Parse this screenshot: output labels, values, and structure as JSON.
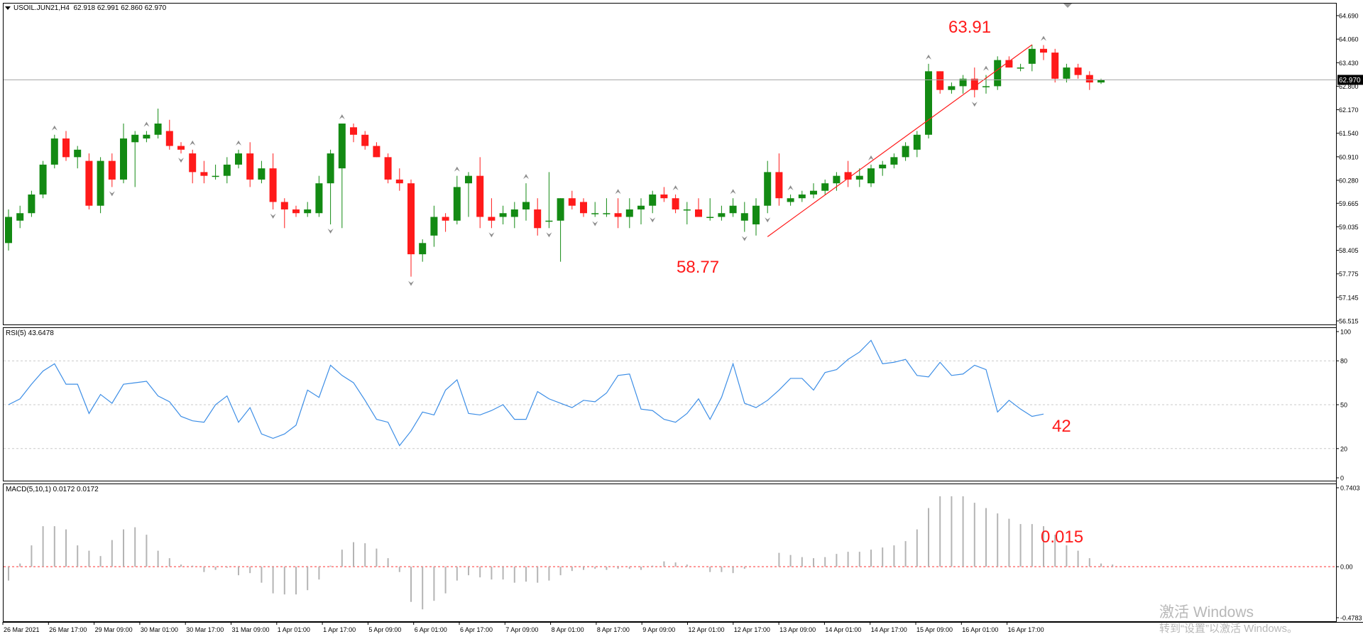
{
  "chart_window": {
    "symbol_header": "USOIL.JUN21,H4",
    "ohlc_values": "62.918 62.991 62.860 62.970",
    "current_price": "62.970",
    "menu_arrow": "triangle-down-icon",
    "colors": {
      "bull": "#138a13",
      "bear": "#ff1a1a",
      "rsi_line": "#3d8ee6",
      "annotation": "#ff1a1a",
      "grid": "#c8c8c8",
      "macd_bar": "#b4b4b4",
      "macd_zero": "#ff3333",
      "pane_border": "#000000"
    }
  },
  "annotations": {
    "high": "63.91",
    "low": "58.77",
    "rsi_value": "42",
    "macd_value": "0.015"
  },
  "indicators": {
    "rsi_label": "RSI(5) 43.6478",
    "macd_label": "MACD(5,10,1) 0.0172 0.0172"
  },
  "watermark": {
    "line1": "激活 Windows",
    "line2": "转到“设置”以激活 Windows。"
  },
  "chart_data": [
    {
      "type": "candlestick",
      "title": "USOIL.JUN21,H4",
      "y_ticks": [
        "64.690",
        "64.060",
        "63.430",
        "62.800",
        "62.170",
        "61.540",
        "60.910",
        "60.280",
        "59.665",
        "59.035",
        "58.405",
        "57.775",
        "57.145",
        "56.515"
      ],
      "ylim": [
        56.515,
        64.69
      ],
      "x_labels": [
        "26 Mar 2021",
        "26 Mar 17:00",
        "29 Mar 09:00",
        "30 Mar 01:00",
        "30 Mar 17:00",
        "31 Mar 09:00",
        "1 Apr 01:00",
        "1 Apr 17:00",
        "5 Apr 09:00",
        "6 Apr 01:00",
        "6 Apr 17:00",
        "7 Apr 09:00",
        "8 Apr 01:00",
        "8 Apr 17:00",
        "9 Apr 09:00",
        "12 Apr 01:00",
        "12 Apr 17:00",
        "13 Apr 09:00",
        "14 Apr 01:00",
        "14 Apr 17:00",
        "15 Apr 09:00",
        "16 Apr 01:00",
        "16 Apr 17:00"
      ],
      "candles": [
        {
          "o": 58.6,
          "h": 59.5,
          "l": 58.4,
          "c": 59.3
        },
        {
          "o": 59.2,
          "h": 59.6,
          "l": 59.0,
          "c": 59.4
        },
        {
          "o": 59.4,
          "h": 60.0,
          "l": 59.3,
          "c": 59.9
        },
        {
          "o": 59.9,
          "h": 60.8,
          "l": 59.8,
          "c": 60.7
        },
        {
          "o": 60.7,
          "h": 61.5,
          "l": 60.6,
          "c": 61.4
        },
        {
          "o": 61.4,
          "h": 61.6,
          "l": 60.8,
          "c": 60.9
        },
        {
          "o": 60.9,
          "h": 61.2,
          "l": 60.6,
          "c": 61.1
        },
        {
          "o": 60.8,
          "h": 61.0,
          "l": 59.5,
          "c": 59.6
        },
        {
          "o": 59.6,
          "h": 60.9,
          "l": 59.4,
          "c": 60.8
        },
        {
          "o": 60.8,
          "h": 61.0,
          "l": 60.1,
          "c": 60.3
        },
        {
          "o": 60.3,
          "h": 61.8,
          "l": 60.2,
          "c": 61.4
        },
        {
          "o": 61.3,
          "h": 61.6,
          "l": 60.1,
          "c": 61.5
        },
        {
          "o": 61.4,
          "h": 61.6,
          "l": 61.3,
          "c": 61.5
        },
        {
          "o": 61.5,
          "h": 62.2,
          "l": 61.4,
          "c": 61.8
        },
        {
          "o": 61.6,
          "h": 61.9,
          "l": 61.1,
          "c": 61.2
        },
        {
          "o": 61.2,
          "h": 61.3,
          "l": 61.0,
          "c": 61.1
        },
        {
          "o": 61.0,
          "h": 61.1,
          "l": 60.2,
          "c": 60.5
        },
        {
          "o": 60.5,
          "h": 60.8,
          "l": 60.2,
          "c": 60.4
        },
        {
          "o": 60.4,
          "h": 60.7,
          "l": 60.3,
          "c": 60.4
        },
        {
          "o": 60.4,
          "h": 60.9,
          "l": 60.2,
          "c": 60.7
        },
        {
          "o": 60.7,
          "h": 61.1,
          "l": 60.6,
          "c": 61.0
        },
        {
          "o": 61.0,
          "h": 61.3,
          "l": 60.1,
          "c": 60.3
        },
        {
          "o": 60.3,
          "h": 60.8,
          "l": 60.2,
          "c": 60.6
        },
        {
          "o": 60.6,
          "h": 61.0,
          "l": 59.5,
          "c": 59.7
        },
        {
          "o": 59.7,
          "h": 59.8,
          "l": 59.0,
          "c": 59.5
        },
        {
          "o": 59.5,
          "h": 59.6,
          "l": 59.3,
          "c": 59.4
        },
        {
          "o": 59.4,
          "h": 59.7,
          "l": 59.3,
          "c": 59.5
        },
        {
          "o": 59.4,
          "h": 60.4,
          "l": 59.3,
          "c": 60.2
        },
        {
          "o": 60.2,
          "h": 61.1,
          "l": 59.1,
          "c": 61.0
        },
        {
          "o": 60.6,
          "h": 61.8,
          "l": 59.0,
          "c": 61.8
        },
        {
          "o": 61.7,
          "h": 61.8,
          "l": 61.3,
          "c": 61.5
        },
        {
          "o": 61.5,
          "h": 61.6,
          "l": 61.1,
          "c": 61.2
        },
        {
          "o": 61.2,
          "h": 61.3,
          "l": 60.9,
          "c": 60.9
        },
        {
          "o": 60.9,
          "h": 61.0,
          "l": 60.2,
          "c": 60.3
        },
        {
          "o": 60.3,
          "h": 60.6,
          "l": 60.0,
          "c": 60.2
        },
        {
          "o": 60.2,
          "h": 60.3,
          "l": 57.7,
          "c": 58.3
        },
        {
          "o": 58.3,
          "h": 58.7,
          "l": 58.1,
          "c": 58.6
        },
        {
          "o": 58.8,
          "h": 59.6,
          "l": 58.5,
          "c": 59.3
        },
        {
          "o": 59.3,
          "h": 59.4,
          "l": 58.9,
          "c": 59.2
        },
        {
          "o": 59.2,
          "h": 60.4,
          "l": 59.1,
          "c": 60.1
        },
        {
          "o": 60.2,
          "h": 60.5,
          "l": 59.3,
          "c": 60.4
        },
        {
          "o": 60.4,
          "h": 60.9,
          "l": 59.0,
          "c": 59.3
        },
        {
          "o": 59.3,
          "h": 59.8,
          "l": 59.0,
          "c": 59.2
        },
        {
          "o": 59.3,
          "h": 59.6,
          "l": 59.1,
          "c": 59.4
        },
        {
          "o": 59.3,
          "h": 59.7,
          "l": 59.0,
          "c": 59.5
        },
        {
          "o": 59.5,
          "h": 60.2,
          "l": 59.2,
          "c": 59.7
        },
        {
          "o": 59.5,
          "h": 59.8,
          "l": 58.8,
          "c": 59.0
        },
        {
          "o": 59.2,
          "h": 60.5,
          "l": 59.0,
          "c": 59.2
        },
        {
          "o": 59.2,
          "h": 59.8,
          "l": 58.1,
          "c": 59.8
        },
        {
          "o": 59.8,
          "h": 60.0,
          "l": 59.5,
          "c": 59.6
        },
        {
          "o": 59.7,
          "h": 59.8,
          "l": 59.3,
          "c": 59.4
        },
        {
          "o": 59.4,
          "h": 59.7,
          "l": 59.3,
          "c": 59.4
        },
        {
          "o": 59.4,
          "h": 59.8,
          "l": 59.3,
          "c": 59.4
        },
        {
          "o": 59.4,
          "h": 59.8,
          "l": 59.0,
          "c": 59.3
        },
        {
          "o": 59.3,
          "h": 59.8,
          "l": 59.0,
          "c": 59.5
        },
        {
          "o": 59.5,
          "h": 59.8,
          "l": 59.1,
          "c": 59.6
        },
        {
          "o": 59.6,
          "h": 60.0,
          "l": 59.4,
          "c": 59.9
        },
        {
          "o": 59.9,
          "h": 60.1,
          "l": 59.7,
          "c": 59.8
        },
        {
          "o": 59.8,
          "h": 59.9,
          "l": 59.4,
          "c": 59.5
        },
        {
          "o": 59.5,
          "h": 59.7,
          "l": 59.1,
          "c": 59.5
        },
        {
          "o": 59.5,
          "h": 59.8,
          "l": 59.3,
          "c": 59.3
        },
        {
          "o": 59.3,
          "h": 59.8,
          "l": 59.2,
          "c": 59.3
        },
        {
          "o": 59.3,
          "h": 59.6,
          "l": 59.2,
          "c": 59.4
        },
        {
          "o": 59.4,
          "h": 59.8,
          "l": 59.3,
          "c": 59.6
        },
        {
          "o": 59.2,
          "h": 59.7,
          "l": 58.9,
          "c": 59.4
        },
        {
          "o": 59.1,
          "h": 59.8,
          "l": 58.8,
          "c": 59.6
        },
        {
          "o": 59.6,
          "h": 60.8,
          "l": 59.4,
          "c": 60.5
        },
        {
          "o": 60.5,
          "h": 61.0,
          "l": 59.6,
          "c": 59.8
        },
        {
          "o": 59.7,
          "h": 59.9,
          "l": 59.6,
          "c": 59.8
        },
        {
          "o": 59.8,
          "h": 60.0,
          "l": 59.7,
          "c": 59.9
        },
        {
          "o": 59.9,
          "h": 60.2,
          "l": 59.8,
          "c": 60.0
        },
        {
          "o": 60.0,
          "h": 60.3,
          "l": 59.9,
          "c": 60.2
        },
        {
          "o": 60.2,
          "h": 60.5,
          "l": 60.0,
          "c": 60.4
        },
        {
          "o": 60.5,
          "h": 60.8,
          "l": 60.1,
          "c": 60.3
        },
        {
          "o": 60.3,
          "h": 60.6,
          "l": 60.1,
          "c": 60.4
        },
        {
          "o": 60.2,
          "h": 60.7,
          "l": 60.1,
          "c": 60.6
        },
        {
          "o": 60.6,
          "h": 60.8,
          "l": 60.4,
          "c": 60.7
        },
        {
          "o": 60.7,
          "h": 61.0,
          "l": 60.6,
          "c": 60.9
        },
        {
          "o": 60.9,
          "h": 61.3,
          "l": 60.8,
          "c": 61.2
        },
        {
          "o": 61.1,
          "h": 61.6,
          "l": 60.9,
          "c": 61.5
        },
        {
          "o": 61.5,
          "h": 63.4,
          "l": 61.4,
          "c": 63.2
        },
        {
          "o": 63.2,
          "h": 63.2,
          "l": 62.6,
          "c": 62.7
        },
        {
          "o": 62.7,
          "h": 62.9,
          "l": 62.6,
          "c": 62.8
        },
        {
          "o": 62.8,
          "h": 63.1,
          "l": 62.6,
          "c": 63.0
        },
        {
          "o": 63.0,
          "h": 63.3,
          "l": 62.5,
          "c": 62.7
        },
        {
          "o": 62.8,
          "h": 63.1,
          "l": 62.6,
          "c": 62.8
        },
        {
          "o": 62.8,
          "h": 63.6,
          "l": 62.7,
          "c": 63.5
        },
        {
          "o": 63.5,
          "h": 63.6,
          "l": 63.3,
          "c": 63.3
        },
        {
          "o": 63.3,
          "h": 63.4,
          "l": 63.2,
          "c": 63.3
        },
        {
          "o": 63.4,
          "h": 63.91,
          "l": 63.2,
          "c": 63.8
        },
        {
          "o": 63.8,
          "h": 63.9,
          "l": 63.5,
          "c": 63.7
        },
        {
          "o": 63.7,
          "h": 63.8,
          "l": 62.9,
          "c": 63.0
        },
        {
          "o": 63.0,
          "h": 63.4,
          "l": 62.9,
          "c": 63.3
        },
        {
          "o": 63.3,
          "h": 63.4,
          "l": 63.0,
          "c": 63.1
        },
        {
          "o": 63.1,
          "h": 63.2,
          "l": 62.7,
          "c": 62.9
        },
        {
          "o": 62.9,
          "h": 63.0,
          "l": 62.86,
          "c": 62.97
        }
      ],
      "fractals_up": [
        4,
        12,
        16,
        20,
        29,
        39,
        45,
        53,
        58,
        63,
        68,
        75,
        80,
        85,
        90
      ],
      "fractals_down": [
        9,
        15,
        23,
        28,
        35,
        42,
        47,
        51,
        56,
        64,
        66,
        84
      ],
      "trendline": {
        "from_index": 66,
        "to_index": 89,
        "from_price": 58.77,
        "to_price": 63.91
      },
      "current_price": 62.97
    },
    {
      "type": "line",
      "title": "RSI(5) 43.6478",
      "y_ticks": [
        "100",
        "80",
        "50",
        "20",
        "0"
      ],
      "ylim": [
        0,
        100
      ],
      "levels": [
        20,
        50,
        80
      ],
      "series": [
        {
          "values": [
            50,
            54,
            64,
            73,
            78,
            64,
            64,
            44,
            57,
            51,
            64,
            65,
            66,
            56,
            52,
            42,
            39,
            38,
            50,
            56,
            38,
            48,
            30,
            27,
            30,
            36,
            60,
            55,
            77,
            70,
            65,
            53,
            40,
            38,
            22,
            32,
            45,
            43,
            60,
            67,
            44,
            43,
            46,
            50,
            40,
            40,
            59,
            54,
            51,
            48,
            53,
            52,
            58,
            70,
            71,
            47,
            46,
            40,
            38,
            44,
            54,
            40,
            55,
            78,
            51,
            48,
            53,
            60,
            68,
            68,
            60,
            72,
            74,
            81,
            86,
            94,
            78,
            79,
            81,
            70,
            69,
            79,
            70,
            71,
            77,
            74,
            45,
            53,
            47,
            42,
            43.6
          ]
        }
      ]
    },
    {
      "type": "bar",
      "title": "MACD(5,10,1) 0.0172 0.0172",
      "y_ticks": [
        "0.7403",
        "0.00",
        "-0.4783"
      ],
      "ylim": [
        -0.4783,
        0.7403
      ],
      "series": [
        {
          "values": [
            -0.13,
            0.03,
            0.2,
            0.38,
            0.38,
            0.35,
            0.2,
            0.15,
            0.1,
            0.25,
            0.35,
            0.37,
            0.3,
            0.15,
            0.08,
            0.02,
            0.01,
            -0.05,
            -0.03,
            -0.01,
            -0.08,
            -0.06,
            -0.15,
            -0.25,
            -0.26,
            -0.26,
            -0.22,
            -0.12,
            0.01,
            0.16,
            0.23,
            0.22,
            0.17,
            0.08,
            -0.05,
            -0.33,
            -0.4,
            -0.32,
            -0.25,
            -0.13,
            -0.08,
            -0.1,
            -0.12,
            -0.12,
            -0.15,
            -0.14,
            -0.15,
            -0.13,
            -0.08,
            -0.04,
            -0.03,
            -0.02,
            -0.03,
            -0.02,
            -0.02,
            -0.03,
            0.01,
            0.05,
            0.04,
            0.02,
            0.0,
            -0.05,
            -0.05,
            -0.06,
            -0.02,
            0.0,
            0.0,
            0.13,
            0.11,
            0.09,
            0.08,
            0.09,
            0.12,
            0.14,
            0.14,
            0.16,
            0.18,
            0.2,
            0.24,
            0.35,
            0.55,
            0.66,
            0.66,
            0.66,
            0.6,
            0.55,
            0.5,
            0.45,
            0.4,
            0.4,
            0.38,
            0.3,
            0.2,
            0.15,
            0.08,
            0.03,
            0.02
          ]
        }
      ]
    }
  ],
  "time_axis_labels": [
    "26 Mar 2021",
    "26 Mar 17:00",
    "29 Mar 09:00",
    "30 Mar 01:00",
    "30 Mar 17:00",
    "31 Mar 09:00",
    "1 Apr 01:00",
    "1 Apr 17:00",
    "5 Apr 09:00",
    "6 Apr 01:00",
    "6 Apr 17:00",
    "7 Apr 09:00",
    "8 Apr 01:00",
    "8 Apr 17:00",
    "9 Apr 09:00",
    "12 Apr 01:00",
    "12 Apr 17:00",
    "13 Apr 09:00",
    "14 Apr 01:00",
    "14 Apr 17:00",
    "15 Apr 09:00",
    "16 Apr 01:00",
    "16 Apr 17:00"
  ]
}
